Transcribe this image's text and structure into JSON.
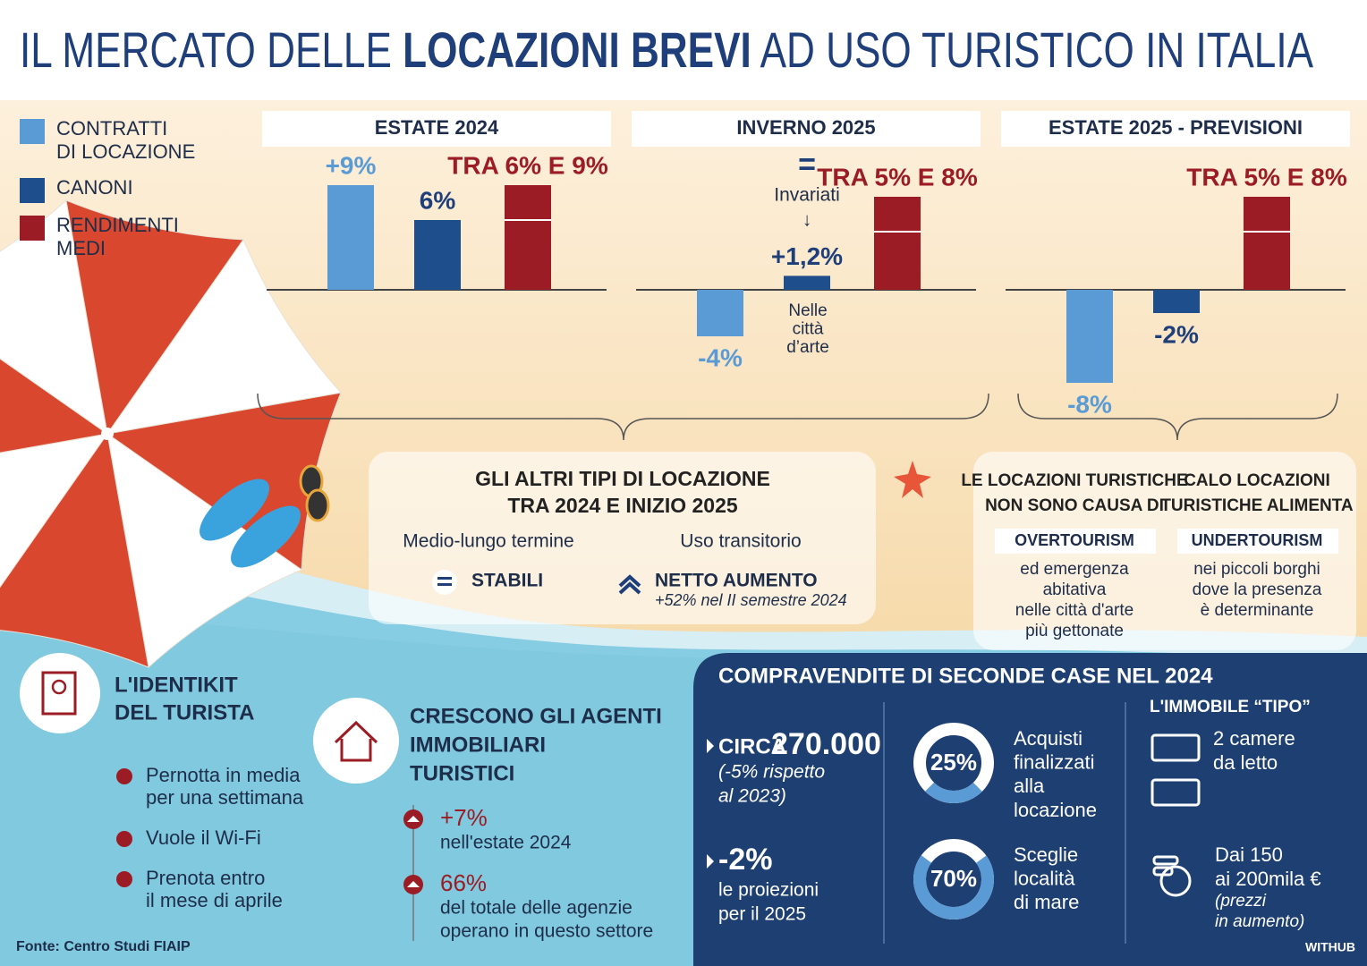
{
  "title": {
    "pre": "IL MERCATO DELLE ",
    "bold": "LOCAZIONI BREVI",
    "post": " AD USO TURISTICO IN ITALIA"
  },
  "legend": [
    {
      "name": [
        "CONTRATTI",
        "DI LOCAZIONE"
      ],
      "color": "#5b9bd5"
    },
    {
      "name": [
        "CANONI"
      ],
      "color": "#1f4e8c"
    },
    {
      "name": [
        "RENDIMENTI",
        "MEDI"
      ],
      "color": "#9b1c24"
    }
  ],
  "chart_data": [
    {
      "type": "bar",
      "title": "ESTATE 2024",
      "values": [
        9,
        6,
        9
      ],
      "lows": [
        null,
        null,
        6
      ],
      "value_labels": [
        "+9%",
        "6%",
        "TRA 6% E 9%"
      ],
      "ylim": [
        -9,
        10
      ]
    },
    {
      "type": "bar",
      "title": "INVERNO 2025",
      "values": [
        -4,
        1.2,
        8
      ],
      "lows": [
        null,
        null,
        5
      ],
      "value_labels": [
        "-4%",
        "+1,2%",
        "TRA 5% E 8%"
      ],
      "ylim": [
        -9,
        10
      ],
      "annotations": [
        [
          "=",
          "Invariati",
          "↓"
        ],
        [
          "Nelle",
          "città",
          "d’arte"
        ]
      ]
    },
    {
      "type": "bar",
      "title": "ESTATE 2025 - PREVISIONI",
      "values": [
        -8,
        -2,
        8
      ],
      "lows": [
        null,
        null,
        5
      ],
      "value_labels": [
        "-8%",
        "-2%",
        "TRA 5% E 8%"
      ],
      "ylim": [
        -9,
        10
      ]
    }
  ],
  "altri_tipi": {
    "title": [
      "GLI ALTRI TIPI DI LOCAZIONE",
      "TRA 2024 E INIZIO 2025"
    ],
    "columns": [
      {
        "heading": "Medio-lungo termine",
        "status": "STABILI"
      },
      {
        "heading": "Uso transitorio",
        "status": "NETTO AUMENTO",
        "note": "+52% nel II semestre 2024"
      }
    ]
  },
  "locazioni_turistiche": [
    {
      "title": [
        "LE LOCAZIONI TURISTICHE",
        "NON SONO CAUSA DI"
      ],
      "keyword": "OVERTOURISM",
      "text": [
        "ed emergenza",
        "abitativa",
        "nelle città d'arte",
        "più gettonate"
      ]
    },
    {
      "title": [
        "CALO LOCAZIONI",
        "TURISTICHE ALIMENTA"
      ],
      "keyword": "UNDERTOURISM",
      "text": [
        "nei piccoli borghi",
        "dove la presenza",
        "è determinante"
      ]
    }
  ],
  "identikit": {
    "title": [
      "L'IDENTIKIT",
      "DEL TURISTA"
    ],
    "items": [
      [
        "Pernotta in media",
        "per una settimana"
      ],
      [
        "Vuole il Wi-Fi"
      ],
      [
        "Prenota entro",
        "il mese di aprile"
      ]
    ]
  },
  "agenti": {
    "title": [
      "CRESCONO GLI AGENTI",
      "IMMOBILIARI",
      "TURISTICI"
    ],
    "items": [
      {
        "value": "+7%",
        "text": [
          "nell'estate 2024"
        ]
      },
      {
        "value": "66%",
        "text": [
          "del totale delle agenzie",
          "operano in questo settore"
        ]
      }
    ]
  },
  "compravendite": {
    "title": "COMPRAVENDITE DI SECONDE CASE NEL 2024",
    "stats": [
      {
        "prefix": "CIRCA",
        "value": "270.000",
        "text": [
          "(-5% rispetto",
          "al 2023)"
        ]
      },
      {
        "value": "-2%",
        "text": [
          "le proiezioni",
          "per il 2025"
        ]
      }
    ],
    "donuts": [
      {
        "type": "donut",
        "value": 25,
        "value_label": "25%",
        "text": [
          "Acquisti",
          "finalizzati",
          "alla",
          "locazione"
        ]
      },
      {
        "type": "donut",
        "value": 70,
        "value_label": "70%",
        "text": [
          "Sceglie",
          "località",
          "di mare"
        ]
      }
    ],
    "immobile": {
      "title": "L'IMMOBILE “TIPO”",
      "rooms": [
        "2 camere",
        "da letto"
      ],
      "price": [
        "Dai 150",
        "ai 200mila €"
      ],
      "note": [
        "(prezzi",
        "in aumento)"
      ]
    }
  },
  "source": "Fonte: Centro Studi FIAIP",
  "brand": "WITHUB"
}
